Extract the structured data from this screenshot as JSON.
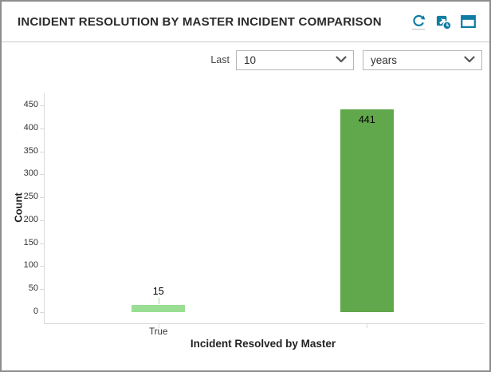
{
  "widget": {
    "title": "INCIDENT RESOLUTION BY MASTER INCIDENT COMPARISON"
  },
  "toolbar": {
    "refresh_icon": "refresh",
    "schedule_icon": "refresh-schedule-clock",
    "maximize_icon": "maximize-window"
  },
  "controls": {
    "last_label": "Last",
    "range_value": "10",
    "unit_value": "years"
  },
  "chart_data": {
    "type": "bar",
    "title": "",
    "categories": [
      "True",
      ""
    ],
    "values": [
      15,
      441
    ],
    "value_labels": [
      "15",
      "441"
    ],
    "bar_colors": [
      "#9ade94",
      "#61a74b"
    ],
    "xlabel": "Incident Resolved by Master",
    "ylabel": "Count",
    "ylim": [
      0,
      450
    ],
    "yticks": [
      0,
      50,
      100,
      150,
      200,
      250,
      300,
      350,
      400,
      450
    ],
    "grid": false,
    "legend": "none"
  },
  "colors": {
    "accent_teal": "#0f7da4",
    "bar_light_green": "#9ade94",
    "bar_green": "#61a74b",
    "axis_gray": "#d9d9d9",
    "widget_border": "#8d8d8d"
  }
}
